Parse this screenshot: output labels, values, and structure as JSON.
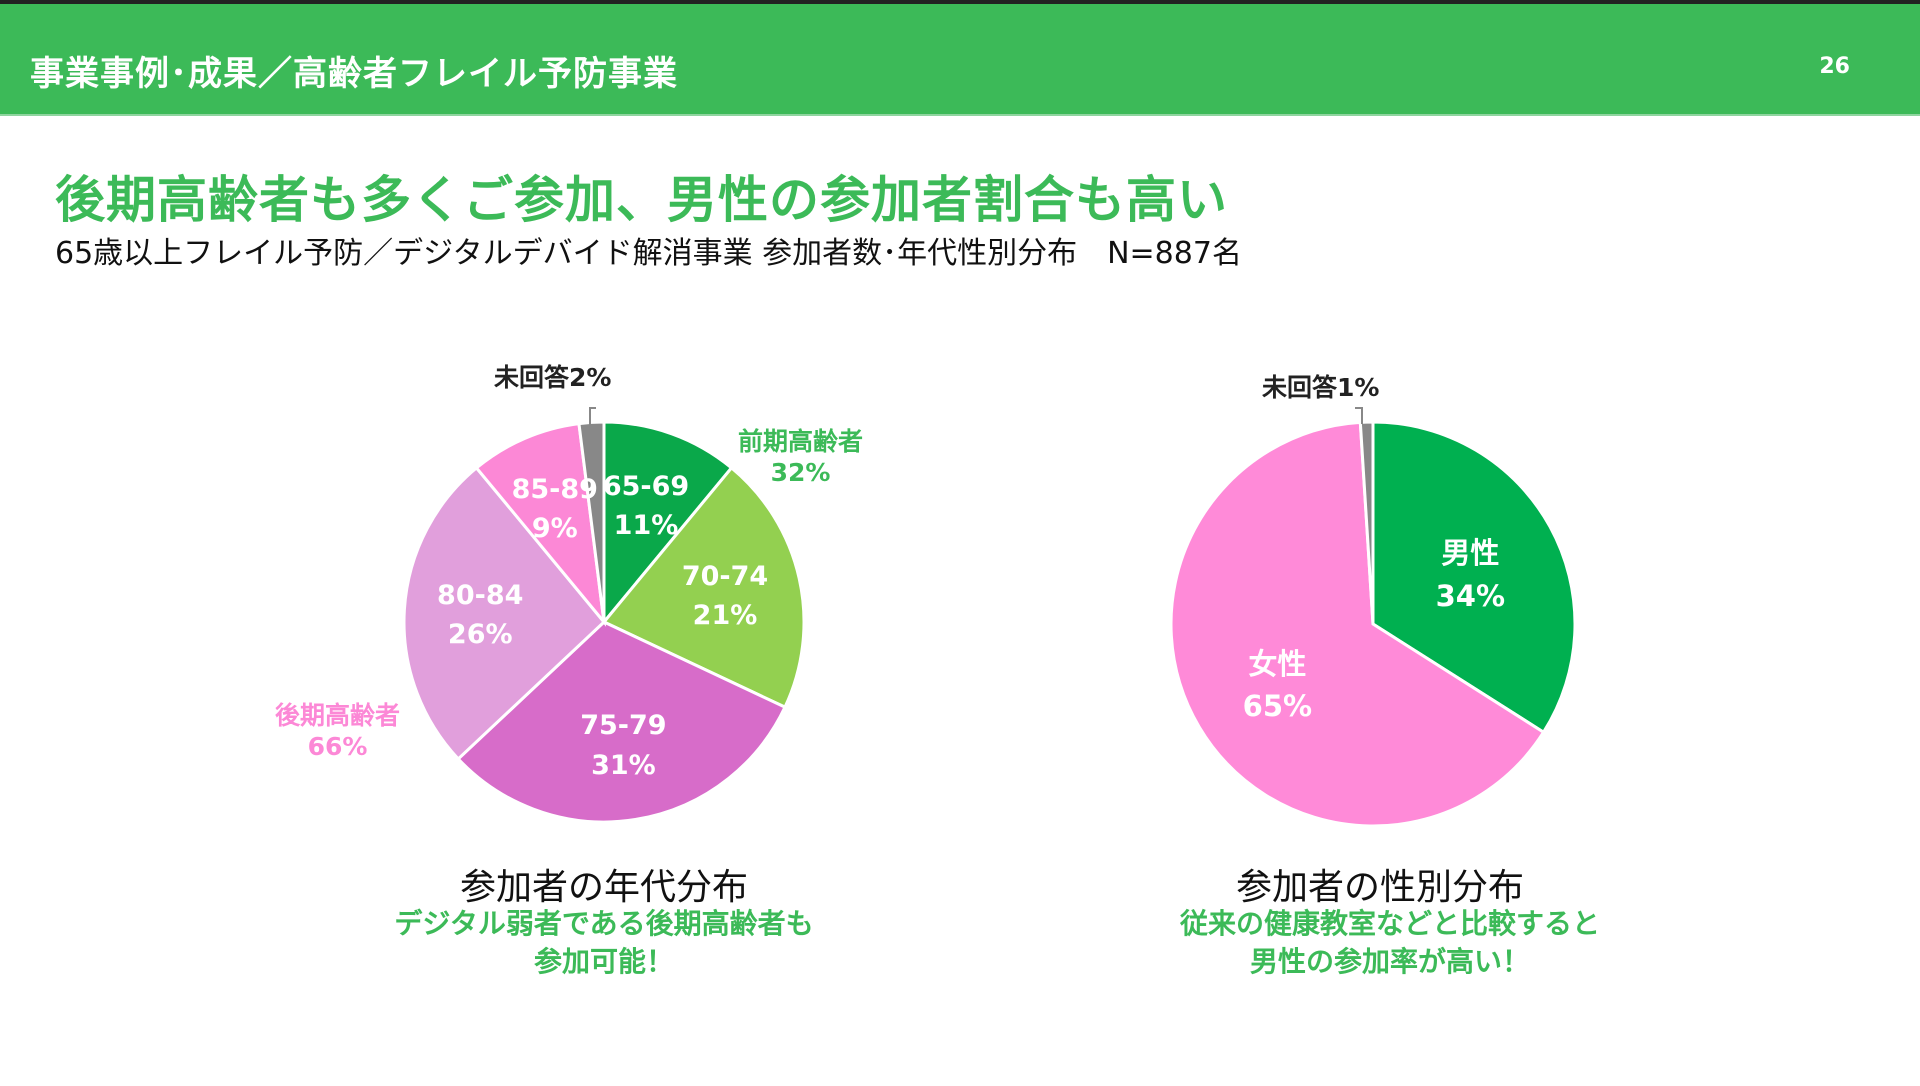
{
  "header": {
    "title": "事業事例･成果／高齢者フレイル予防事業",
    "page_number": "26"
  },
  "title": "後期高齢者も多くご参加、男性の参加者割合も高い",
  "subtitle": "65歳以上フレイル予防／デジタルデバイド解消事業 参加者数･年代性別分布　N=887名",
  "chart_data": [
    {
      "type": "pie",
      "title": "参加者の年代分布",
      "slices": [
        {
          "label": "65-69",
          "value": 11,
          "text": "11%",
          "color": "#0aa84a"
        },
        {
          "label": "70-74",
          "value": 21,
          "text": "21%",
          "color": "#93d050"
        },
        {
          "label": "75-79",
          "value": 31,
          "text": "31%",
          "color": "#d76cc9"
        },
        {
          "label": "80-84",
          "value": 26,
          "text": "26%",
          "color": "#e19fdc"
        },
        {
          "label": "85-89",
          "value": 9,
          "text": "9%",
          "color": "#fc88d6"
        },
        {
          "label": "未回答",
          "value": 2,
          "text": "未回答2%",
          "color": "#888888"
        }
      ],
      "groups": [
        {
          "label": "前期高齢者",
          "value": "32%",
          "color": "#3cba58"
        },
        {
          "label": "後期高齢者",
          "value": "66%",
          "color": "#fc88d6"
        }
      ],
      "note": [
        "デジタル弱者である後期高齢者も",
        "参加可能！"
      ]
    },
    {
      "type": "pie",
      "title": "参加者の性別分布",
      "slices": [
        {
          "label": "男性",
          "value": 34,
          "text": "34%",
          "color": "#00b050"
        },
        {
          "label": "女性",
          "value": 65,
          "text": "65%",
          "color": "#ff8ad8"
        },
        {
          "label": "未回答",
          "value": 1,
          "text": "未回答1%",
          "color": "#888888"
        }
      ],
      "note": [
        "従来の健康教室などと比較すると",
        "男性の参加率が高い！"
      ]
    }
  ]
}
